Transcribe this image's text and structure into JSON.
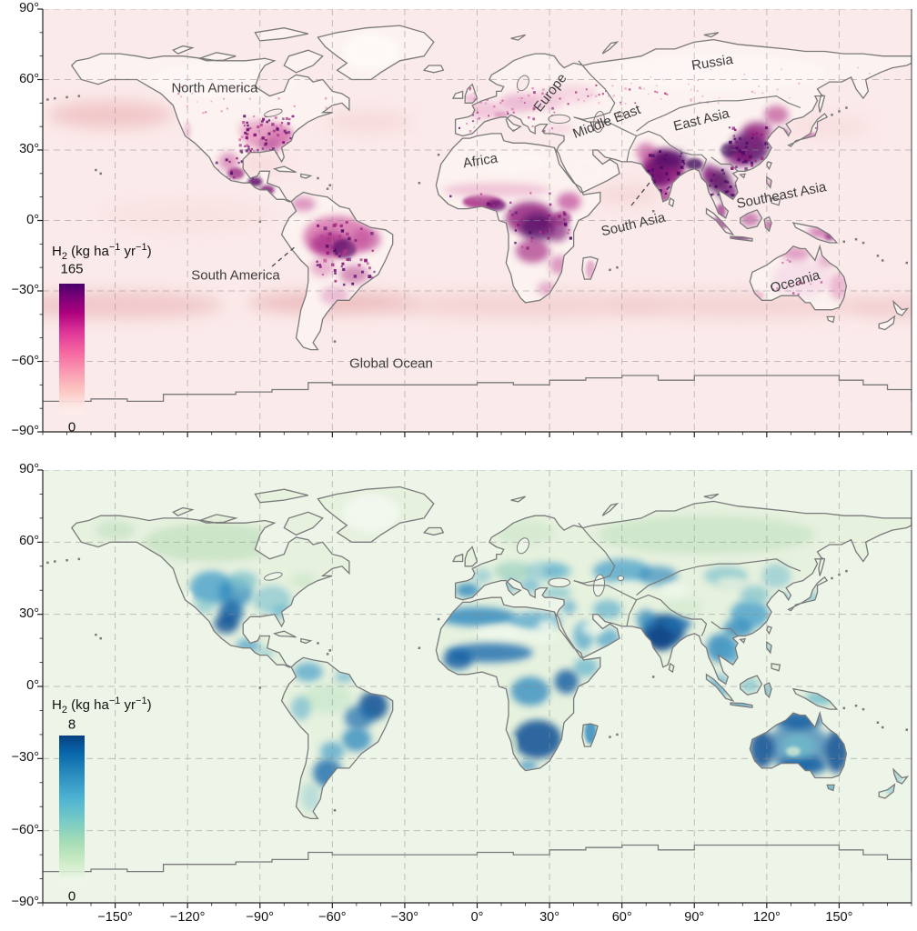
{
  "figure": {
    "description": "Two-panel global heatmap figure of molecular hydrogen (H2) surface fluxes on an equirectangular world map",
    "y_tick_labels": [
      "90°",
      "60°",
      "30°",
      "0°",
      "−30°",
      "−60°",
      "−90°"
    ],
    "x_tick_labels": [
      "−150°",
      "−120°",
      "−90°",
      "−60°",
      "−30°",
      "0°",
      "30°",
      "60°",
      "90°",
      "120°",
      "150°"
    ],
    "panels": [
      {
        "name": "h2-emissions-map",
        "colorbar": {
          "title_h": "H",
          "title_sub": "2",
          "title_mid": " (kg ha",
          "title_exp1": "−1",
          "title_mid2": " yr",
          "title_exp2": "−1",
          "title_end": ")",
          "max": "165",
          "min": "0"
        },
        "region_labels": [
          {
            "text": "North America"
          },
          {
            "text": "South America"
          },
          {
            "text": "Global Ocean"
          },
          {
            "text": "Europe"
          },
          {
            "text": "Russia"
          },
          {
            "text": "Middle East"
          },
          {
            "text": "East Asia"
          },
          {
            "text": "Africa"
          },
          {
            "text": "South Asia"
          },
          {
            "text": "Southeast Asia"
          },
          {
            "text": "Oceania"
          }
        ]
      },
      {
        "name": "h2-uptake-map",
        "colorbar": {
          "title_h": "H",
          "title_sub": "2",
          "title_mid": " (kg ha",
          "title_exp1": "−1",
          "title_mid2": " yr",
          "title_exp2": "−1",
          "title_end": ")",
          "max": "8",
          "min": "0"
        },
        "region_labels": []
      }
    ]
  },
  "chart_data": [
    {
      "type": "heatmap",
      "subtype": "global_map",
      "panel": "top",
      "title": "H2 (kg ha−1 yr−1)",
      "colormap": "RdPu (near-white pink at 0 to dark purple at max)",
      "colorbar_range": [
        0,
        165
      ],
      "colorbar_tick_labels": [
        "165",
        "0"
      ],
      "projection": "equirectangular",
      "x_range_deg": [
        -180,
        180
      ],
      "y_range_deg": [
        -90,
        90
      ],
      "x_tick_values": [
        -150,
        -120,
        -90,
        -60,
        -30,
        0,
        30,
        60,
        90,
        120,
        150
      ],
      "y_tick_values": [
        90,
        60,
        30,
        0,
        -30,
        -60,
        -90
      ],
      "grid": "dashed 30-degree graticule",
      "region_annotations": [
        "North America",
        "South America",
        "Global Ocean",
        "Europe",
        "Russia",
        "Middle East",
        "East Asia",
        "Africa",
        "South Asia",
        "Southeast Asia",
        "Oceania"
      ],
      "hotspots_estimated_values": [
        {
          "region": "South Asia (India, Ganges plain, Bangladesh)",
          "approx_value": 150
        },
        {
          "region": "East Asia (eastern China)",
          "approx_value": 150
        },
        {
          "region": "Southeast Asia (Indochina, Java, Borneo)",
          "approx_value": 140
        },
        {
          "region": "Central Africa (Congo basin, Lake Victoria)",
          "approx_value": 130
        },
        {
          "region": "West Africa coast (Gulf of Guinea)",
          "approx_value": 120
        },
        {
          "region": "Brazil / Amazon arc",
          "approx_value": 110
        },
        {
          "region": "Central America and southern Mexico",
          "approx_value": 100
        },
        {
          "region": "Eastern United States",
          "approx_value": 60
        },
        {
          "region": "Europe",
          "approx_value": 35
        },
        {
          "region": "Northern and eastern Australia, New Guinea",
          "approx_value": 50
        },
        {
          "region": "Boreal Canada / Siberia",
          "approx_value": 8
        },
        {
          "region": "Southern-ocean band near 35S",
          "approx_value": 15
        },
        {
          "region": "Global Ocean background",
          "approx_value": 5
        }
      ]
    },
    {
      "type": "heatmap",
      "subtype": "global_map",
      "panel": "bottom",
      "title": "H2 (kg ha−1 yr−1)",
      "colormap": "GnBu (pale green at 0 to dark blue at max)",
      "colorbar_range": [
        0,
        8
      ],
      "colorbar_tick_labels": [
        "8",
        "0"
      ],
      "projection": "equirectangular",
      "x_range_deg": [
        -180,
        180
      ],
      "y_range_deg": [
        -90,
        90
      ],
      "x_tick_values": [
        -150,
        -120,
        -90,
        -60,
        -30,
        0,
        30,
        60,
        90,
        120,
        150
      ],
      "y_tick_values": [
        90,
        60,
        30,
        0,
        -30,
        -60,
        -90
      ],
      "grid": "dashed 30-degree graticule",
      "region_annotations": [],
      "hotspots_estimated_values": [
        {
          "region": "Australia (almost entire continent)",
          "approx_value": 7.5
        },
        {
          "region": "Southern Africa and Sahel band",
          "approx_value": 7
        },
        {
          "region": "India",
          "approx_value": 7.5
        },
        {
          "region": "Northeast Brazil and Argentina pampas",
          "approx_value": 7
        },
        {
          "region": "South-central United States and Mexico",
          "approx_value": 6.5
        },
        {
          "region": "Kazakh steppe / central Asia",
          "approx_value": 5
        },
        {
          "region": "Iberia and Mediterranean",
          "approx_value": 5
        },
        {
          "region": "Central Europe",
          "approx_value": 3
        },
        {
          "region": "Amazon interior",
          "approx_value": 2.5
        },
        {
          "region": "Boreal Canada / Siberia / Scandinavia",
          "approx_value": 1.5
        },
        {
          "region": "Sahara interior, Tibet, Greenland (pale patches)",
          "approx_value": 0.5
        },
        {
          "region": "Global ocean background",
          "approx_value": 0.3
        }
      ]
    }
  ]
}
